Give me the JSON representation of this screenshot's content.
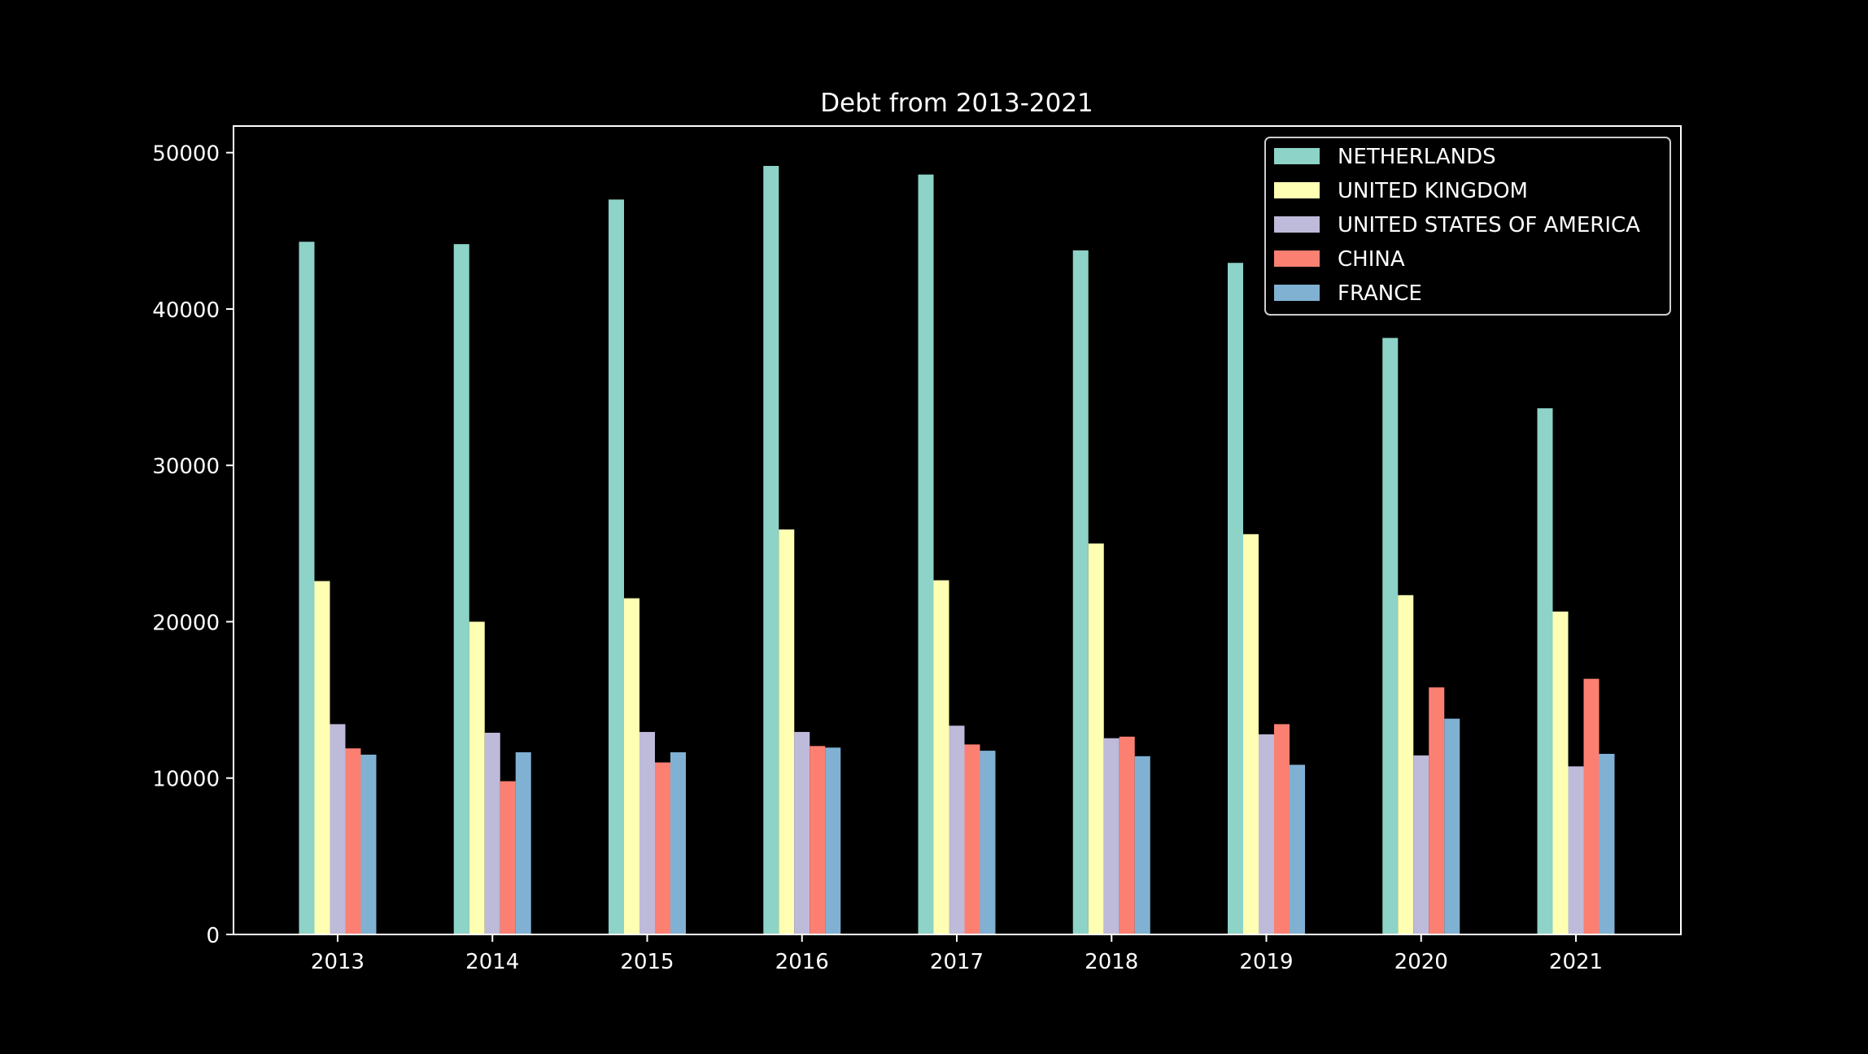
{
  "chart_data": {
    "type": "bar",
    "title": "Debt from 2013-2021",
    "xlabel": "",
    "ylabel": "",
    "categories": [
      "2013",
      "2014",
      "2015",
      "2016",
      "2017",
      "2018",
      "2019",
      "2020",
      "2021"
    ],
    "ylim": [
      0,
      51700
    ],
    "yticks": [
      0,
      10000,
      20000,
      30000,
      40000,
      50000
    ],
    "ytick_labels": [
      "0",
      "10000",
      "20000",
      "30000",
      "40000",
      "50000"
    ],
    "grid": false,
    "legend_position": "top-right",
    "series": [
      {
        "name": "NETHERLANDS",
        "color": "#8dd3c7",
        "values": [
          44300,
          44150,
          47000,
          49150,
          48600,
          43750,
          42950,
          38150,
          33650
        ]
      },
      {
        "name": "UNITED KINGDOM",
        "color": "#ffffb3",
        "values": [
          22600,
          20000,
          21500,
          25900,
          22650,
          25000,
          25600,
          21700,
          20650
        ]
      },
      {
        "name": "UNITED STATES OF AMERICA",
        "color": "#bebada",
        "values": [
          13450,
          12900,
          12950,
          12950,
          13350,
          12550,
          12800,
          11450,
          10750
        ]
      },
      {
        "name": "CHINA",
        "color": "#fb8072",
        "values": [
          11900,
          9800,
          11000,
          12050,
          12150,
          12650,
          13450,
          15800,
          16350
        ]
      },
      {
        "name": "FRANCE",
        "color": "#80b1d3",
        "values": [
          11500,
          11650,
          11650,
          11950,
          11750,
          11400,
          10850,
          13800,
          11550
        ]
      }
    ]
  }
}
